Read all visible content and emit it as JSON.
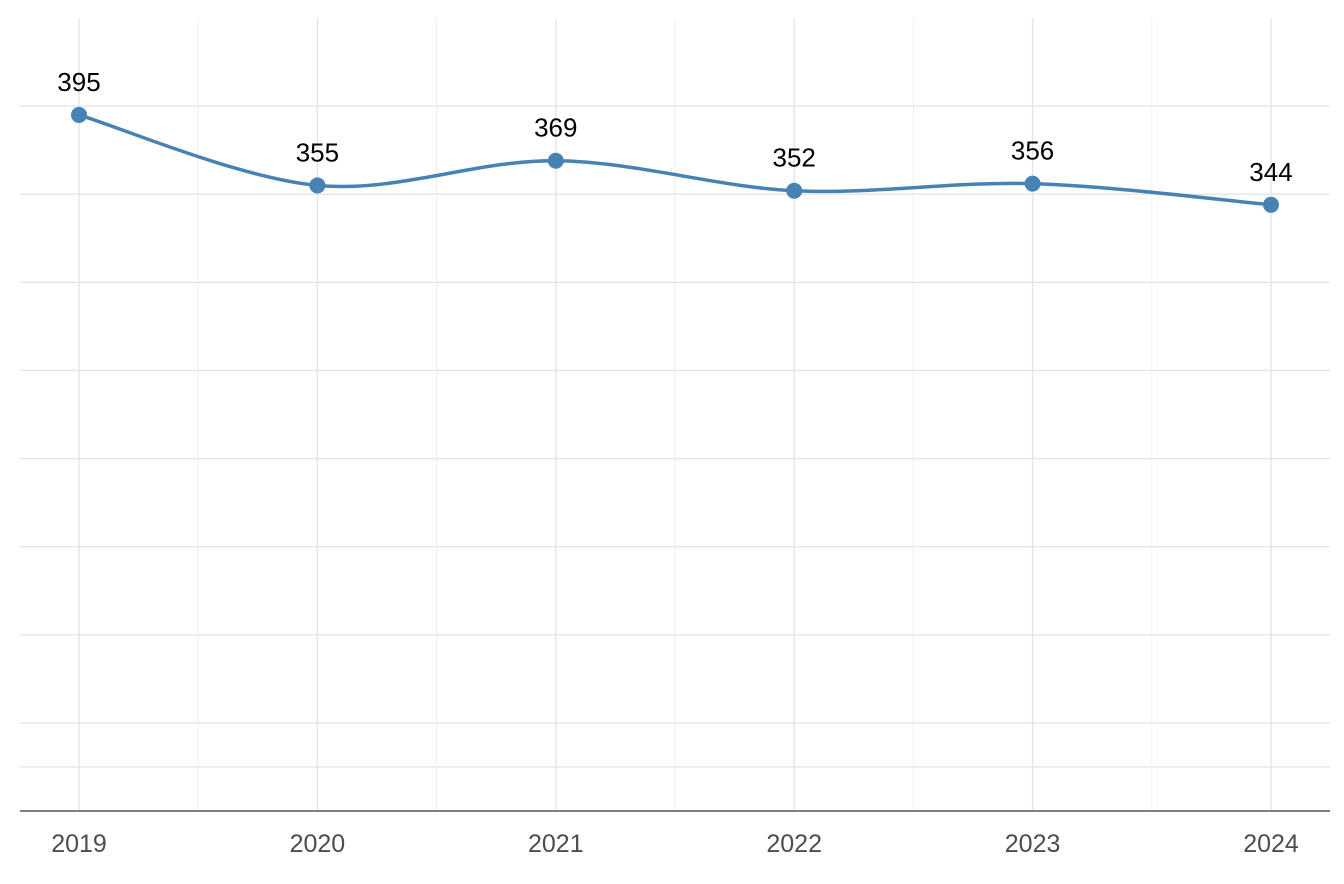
{
  "chart_data": {
    "type": "line",
    "title": "",
    "xlabel": "",
    "ylabel": "",
    "x": [
      "2019",
      "2020",
      "2021",
      "2022",
      "2023",
      "2024"
    ],
    "series": [
      {
        "values": [
          395,
          355,
          369,
          352,
          356,
          344
        ],
        "color": "#4682B4"
      }
    ],
    "ylim": [
      0,
      450
    ],
    "y_gridlines": [
      25,
      50,
      100,
      150,
      200,
      250,
      300,
      350,
      400
    ],
    "grid": true,
    "legend": "none",
    "smooth": true,
    "data_labels": true,
    "y_tick_labels_visible": false
  }
}
